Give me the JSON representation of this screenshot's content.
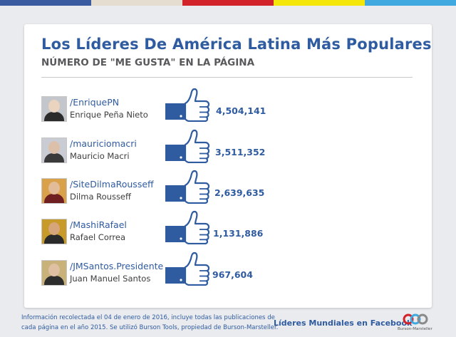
{
  "colors": {
    "topbar": [
      "#3a5ba0",
      "#e4ddd0",
      "#d2232a",
      "#f5e60a",
      "#3fa9e0"
    ],
    "accent": "#2f5ba0",
    "like_blue": "#2f5ba0"
  },
  "chart_data": {
    "type": "bar",
    "title": "Los Líderes De América Latina Más Populares",
    "subtitle": "NÚMERO DE \"ME GUSTA\" EN LA PÁGINA",
    "categories": [
      "Enrique Peña Nieto",
      "Mauricio Macri",
      "Dilma Rousseff",
      "Rafael Correa",
      "Juan Manuel Santos"
    ],
    "values": [
      4504141,
      3511352,
      2639635,
      1131886,
      967604
    ],
    "rows": [
      {
        "handle": "/EnriquePN",
        "name": "Enrique Peña Nieto",
        "likes": "4,504,141",
        "value": 4504141,
        "icon": "thumbs-up-icon"
      },
      {
        "handle": "/mauriciomacri",
        "name": "Mauricio Macri",
        "likes": "3,511,352",
        "value": 3511352,
        "icon": "thumbs-up-icon"
      },
      {
        "handle": "/SiteDilmaRousseff",
        "name": "Dilma Rousseff",
        "likes": "2,639,635",
        "value": 2639635,
        "icon": "thumbs-up-icon"
      },
      {
        "handle": "/MashiRafael",
        "name": "Rafael Correa",
        "likes": "1,131,886",
        "value": 1131886,
        "icon": "thumbs-up-icon"
      },
      {
        "handle": "/JMSantos.Presidente",
        "name": "Juan Manuel Santos",
        "likes": "967,604",
        "value": 967604,
        "icon": "thumbs-up-icon"
      }
    ]
  },
  "footer": {
    "line1": "Información recolectada el 04 de enero de 2016, incluye todas las  publicaciones de",
    "line2": "cada página en el año 2015. Se utilizó Burson Tools, propiedad de  Burson-Marsteller.",
    "brand": "Líderes Mundiales en Facebook",
    "logo_text": "Burson-Marsteller"
  }
}
